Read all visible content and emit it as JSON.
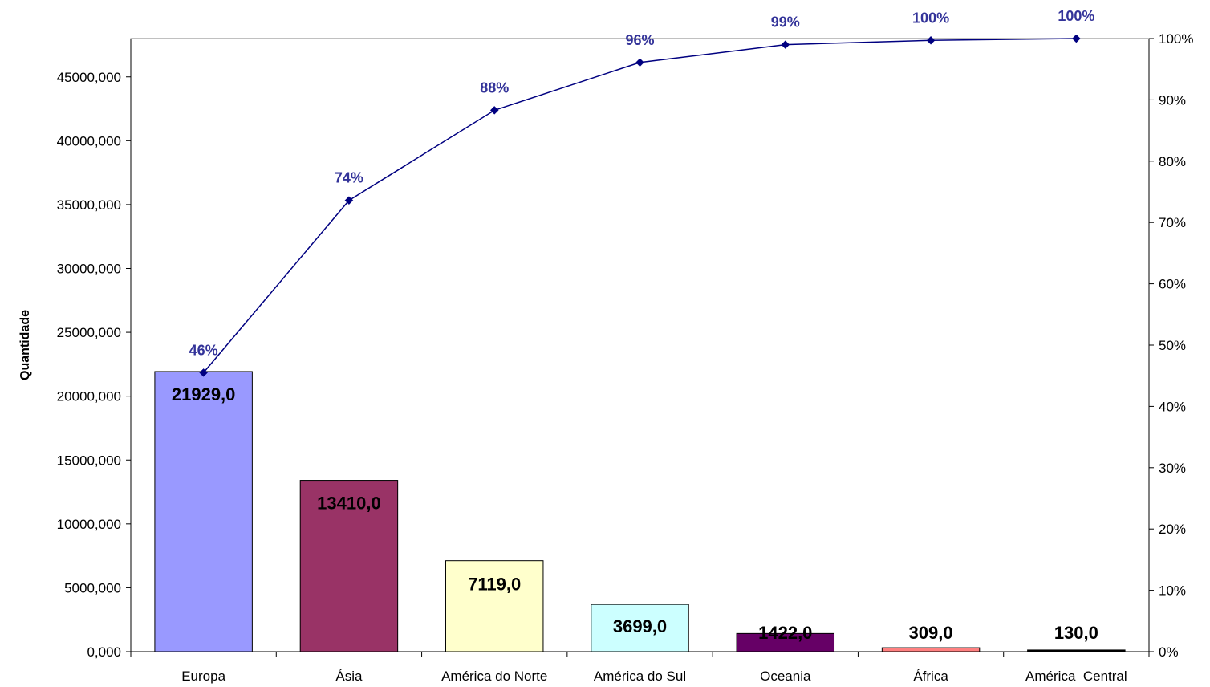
{
  "chart_data": {
    "type": "bar",
    "title": "",
    "xlabel": "",
    "ylabel": "Quantidade",
    "categories": [
      "Europa",
      "Ásia",
      "América do Norte",
      "América do Sul",
      "Oceania",
      "África",
      "América  Central"
    ],
    "series": [
      {
        "values": [
          21929.0,
          13410.0,
          7119.0,
          3699.0,
          1422.0,
          309.0,
          130.0
        ],
        "value_labels": [
          "21929,0",
          "13410,0",
          "7119,0",
          "3699,0",
          "1422,0",
          "309,0",
          "130,0"
        ],
        "colors": [
          "#9999FF",
          "#993366",
          "#FFFFCC",
          "#CCFFFF",
          "#660066",
          "#FF8080",
          "#000000"
        ]
      },
      {
        "type": "line",
        "axis": "secondary",
        "values": [
          45.5,
          73.6,
          88.3,
          96.1,
          99.0,
          99.7,
          100.0
        ],
        "value_labels": [
          "46%",
          "74%",
          "88%",
          "96%",
          "99%",
          "100%",
          "100%"
        ],
        "color": "#000080",
        "label_color": "#333399"
      }
    ],
    "ylim": [
      0,
      48000
    ],
    "yticks": [
      0,
      5000,
      10000,
      15000,
      20000,
      25000,
      30000,
      35000,
      40000,
      45000
    ],
    "ytick_labels": [
      "0,000",
      "5000,000",
      "10000,000",
      "15000,000",
      "20000,000",
      "25000,000",
      "30000,000",
      "35000,000",
      "40000,000",
      "45000,000"
    ],
    "y2lim": [
      0,
      100
    ],
    "y2ticks": [
      0,
      10,
      20,
      30,
      40,
      50,
      60,
      70,
      80,
      90,
      100
    ],
    "y2tick_labels": [
      "0%",
      "10%",
      "20%",
      "30%",
      "40%",
      "50%",
      "60%",
      "70%",
      "80%",
      "90%",
      "100%"
    ],
    "grid": false,
    "legend": "none"
  }
}
